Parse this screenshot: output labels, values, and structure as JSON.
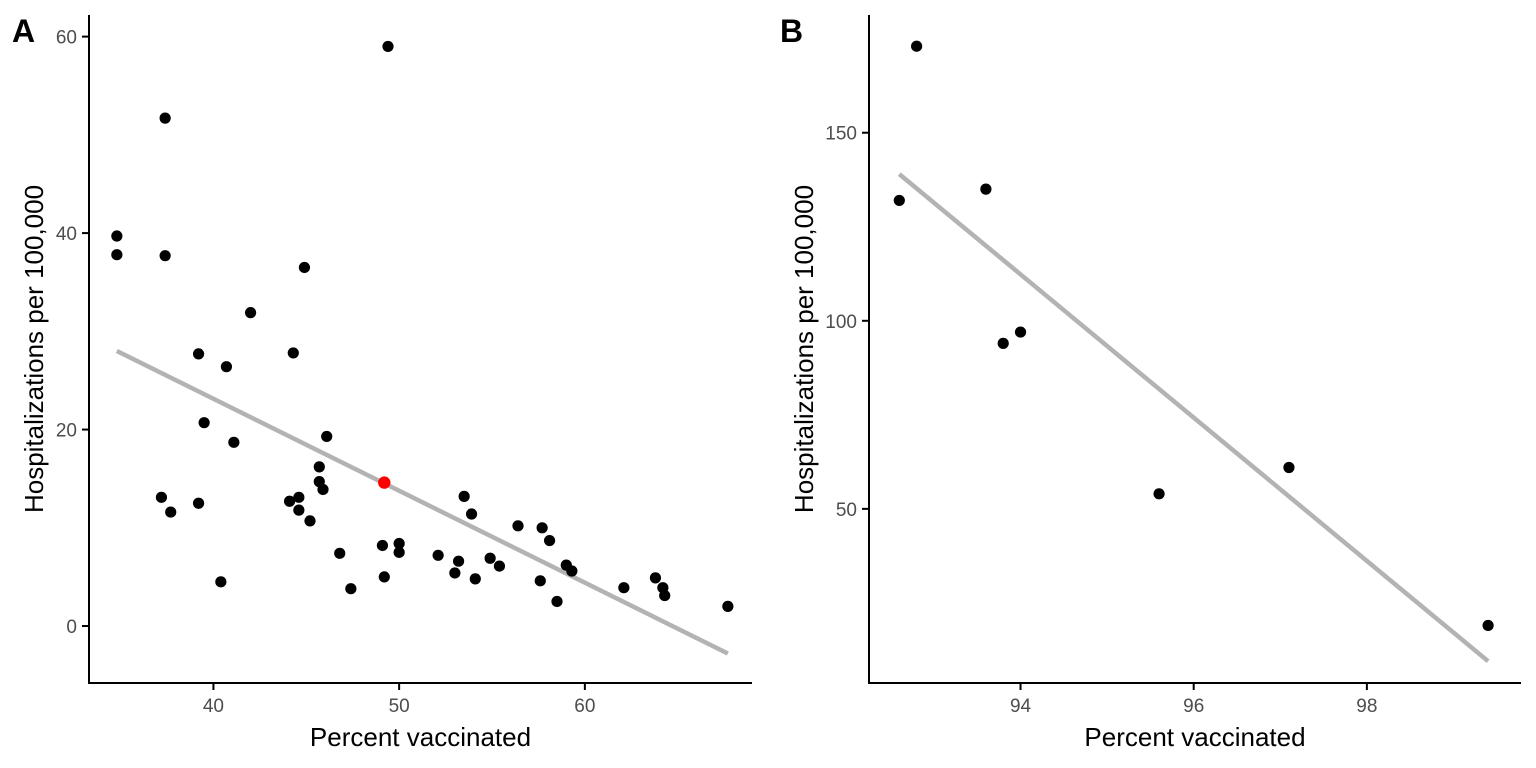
{
  "colors": {
    "point": "#000000",
    "highlight": "#ff0000",
    "fit_line": "#b3b3b3",
    "axis": "#000000",
    "tick_text": "#4d4d4d"
  },
  "chart_data": [
    {
      "panel_label": "A",
      "type": "scatter",
      "xlabel": "Percent vaccinated",
      "ylabel": "Hospitalizations per 100,000",
      "xlim": [
        33.3,
        69.0
      ],
      "ylim": [
        -5.8,
        62.2
      ],
      "x_ticks": [
        40,
        50,
        60
      ],
      "y_ticks": [
        0,
        20,
        40,
        60
      ],
      "grid": false,
      "points": [
        {
          "x": 34.8,
          "y": 39.7
        },
        {
          "x": 34.8,
          "y": 37.8
        },
        {
          "x": 37.4,
          "y": 51.7
        },
        {
          "x": 37.4,
          "y": 37.7
        },
        {
          "x": 37.2,
          "y": 13.1
        },
        {
          "x": 37.7,
          "y": 11.6
        },
        {
          "x": 39.2,
          "y": 27.7
        },
        {
          "x": 39.5,
          "y": 20.7
        },
        {
          "x": 39.2,
          "y": 12.5
        },
        {
          "x": 40.4,
          "y": 4.5
        },
        {
          "x": 40.7,
          "y": 26.4
        },
        {
          "x": 41.1,
          "y": 18.7
        },
        {
          "x": 42.0,
          "y": 31.9
        },
        {
          "x": 44.3,
          "y": 27.8
        },
        {
          "x": 44.9,
          "y": 36.5
        },
        {
          "x": 44.1,
          "y": 12.7
        },
        {
          "x": 44.6,
          "y": 13.1
        },
        {
          "x": 44.6,
          "y": 11.8
        },
        {
          "x": 45.2,
          "y": 10.7
        },
        {
          "x": 45.7,
          "y": 16.2
        },
        {
          "x": 45.7,
          "y": 14.7
        },
        {
          "x": 45.9,
          "y": 13.9
        },
        {
          "x": 46.1,
          "y": 19.3
        },
        {
          "x": 46.8,
          "y": 7.4
        },
        {
          "x": 47.4,
          "y": 3.8
        },
        {
          "x": 49.1,
          "y": 8.2
        },
        {
          "x": 49.2,
          "y": 5.0
        },
        {
          "x": 49.4,
          "y": 59.0
        },
        {
          "x": 50.0,
          "y": 8.4
        },
        {
          "x": 50.0,
          "y": 7.5
        },
        {
          "x": 52.1,
          "y": 7.2
        },
        {
          "x": 53.0,
          "y": 5.4
        },
        {
          "x": 53.2,
          "y": 6.6
        },
        {
          "x": 53.5,
          "y": 13.2
        },
        {
          "x": 53.9,
          "y": 11.4
        },
        {
          "x": 54.1,
          "y": 4.8
        },
        {
          "x": 54.9,
          "y": 6.9
        },
        {
          "x": 55.4,
          "y": 6.1
        },
        {
          "x": 56.4,
          "y": 10.2
        },
        {
          "x": 57.6,
          "y": 4.6
        },
        {
          "x": 57.7,
          "y": 10.0
        },
        {
          "x": 58.1,
          "y": 8.7
        },
        {
          "x": 58.5,
          "y": 2.5
        },
        {
          "x": 59.0,
          "y": 6.2
        },
        {
          "x": 59.3,
          "y": 5.6
        },
        {
          "x": 62.1,
          "y": 3.9
        },
        {
          "x": 63.8,
          "y": 4.9
        },
        {
          "x": 64.2,
          "y": 3.9
        },
        {
          "x": 64.3,
          "y": 3.1
        },
        {
          "x": 67.7,
          "y": 2.0
        }
      ],
      "highlight_points": [
        {
          "x": 49.2,
          "y": 14.6
        }
      ],
      "fit_line": {
        "x": [
          34.8,
          67.7
        ],
        "y": [
          28.0,
          -2.8
        ]
      }
    },
    {
      "panel_label": "B",
      "type": "scatter",
      "xlabel": "Percent vaccinated",
      "ylabel": "Hospitalizations per 100,000",
      "xlim": [
        92.25,
        99.78
      ],
      "ylim": [
        3.7,
        181.3
      ],
      "x_ticks": [
        94,
        96,
        98
      ],
      "y_ticks": [
        50,
        100,
        150
      ],
      "grid": false,
      "points": [
        {
          "x": 92.6,
          "y": 132.0
        },
        {
          "x": 92.8,
          "y": 173.0
        },
        {
          "x": 93.6,
          "y": 135.0
        },
        {
          "x": 93.8,
          "y": 94.0
        },
        {
          "x": 94.0,
          "y": 97.0
        },
        {
          "x": 95.6,
          "y": 54.0
        },
        {
          "x": 97.1,
          "y": 61.0
        },
        {
          "x": 99.4,
          "y": 19.0
        }
      ],
      "highlight_points": [],
      "fit_line": {
        "x": [
          92.6,
          99.4
        ],
        "y": [
          139.0,
          9.5
        ]
      }
    }
  ]
}
